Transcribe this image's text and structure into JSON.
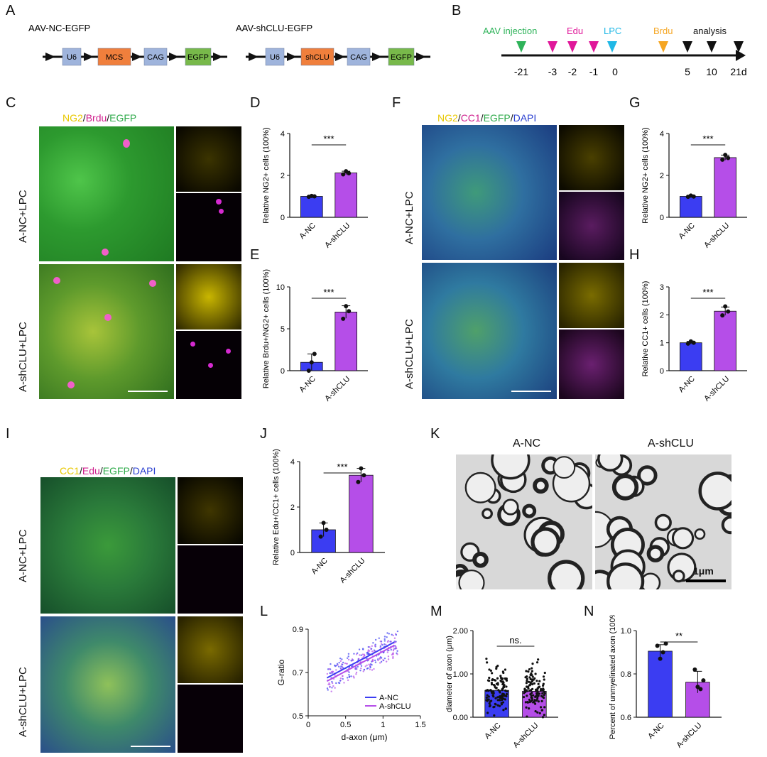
{
  "panels": {
    "A": "A",
    "B": "B",
    "C": "C",
    "D": "D",
    "E": "E",
    "F": "F",
    "G": "G",
    "H": "H",
    "I": "I",
    "J": "J",
    "K": "K",
    "L": "L",
    "M": "M",
    "N": "N"
  },
  "panel_a": {
    "constructs": [
      {
        "title": "AAV-NC-EGFP",
        "boxes": [
          {
            "label": "U6",
            "color": "#9fb4dc"
          },
          {
            "label": "MCS",
            "color": "#f07f3c"
          },
          {
            "label": "CAG",
            "color": "#9fb4dc"
          },
          {
            "label": "EGFP",
            "color": "#78b94a"
          }
        ]
      },
      {
        "title": "AAV-shCLU-EGFP",
        "boxes": [
          {
            "label": "U6",
            "color": "#9fb4dc"
          },
          {
            "label": "shCLU",
            "color": "#f07f3c"
          },
          {
            "label": "CAG",
            "color": "#9fb4dc"
          },
          {
            "label": "EGFP",
            "color": "#78b94a"
          }
        ]
      }
    ]
  },
  "panel_b": {
    "events": [
      {
        "label": "AAV injection",
        "color": "#2fb35a"
      },
      {
        "label": "Edu",
        "color": "#e0189a"
      },
      {
        "label": "LPC",
        "color": "#20b8e6"
      },
      {
        "label": "Brdu",
        "color": "#f5a623"
      },
      {
        "label": "analysis",
        "color": "#111111"
      }
    ],
    "ticks": [
      "-21",
      "-3",
      "-2",
      "-1",
      "0",
      "5",
      "10",
      "21d"
    ]
  },
  "panel_c": {
    "stain": [
      {
        "t": "NG2",
        "c": "#e8c800"
      },
      {
        "t": "/",
        "c": "#111"
      },
      {
        "t": "Brdu",
        "c": "#d0208e"
      },
      {
        "t": "/",
        "c": "#111"
      },
      {
        "t": "EGFP",
        "c": "#2eaa4a"
      }
    ],
    "rows": [
      "A-NC+LPC",
      "A-shCLU+LPC"
    ]
  },
  "panel_f": {
    "stain": [
      {
        "t": "NG2",
        "c": "#e8c800"
      },
      {
        "t": "/",
        "c": "#111"
      },
      {
        "t": "CC1",
        "c": "#d0208e"
      },
      {
        "t": "/",
        "c": "#111"
      },
      {
        "t": "EGFP",
        "c": "#2eaa4a"
      },
      {
        "t": "/",
        "c": "#111"
      },
      {
        "t": "DAPI",
        "c": "#2a3fd0"
      }
    ],
    "rows": [
      "A-NC+LPC",
      "A-shCLU+LPC"
    ]
  },
  "panel_i": {
    "stain": [
      {
        "t": "CC1",
        "c": "#e8c800"
      },
      {
        "t": "/",
        "c": "#111"
      },
      {
        "t": "Edu",
        "c": "#d0208e"
      },
      {
        "t": "/",
        "c": "#111"
      },
      {
        "t": "EGFP",
        "c": "#2eaa4a"
      },
      {
        "t": "/",
        "c": "#111"
      },
      {
        "t": "DAPI",
        "c": "#2a3fd0"
      }
    ],
    "rows": [
      "A-NC+LPC",
      "A-shCLU+LPC"
    ]
  },
  "panel_k": {
    "titles": [
      "A-NC",
      "A-shCLU"
    ],
    "scale": "1μm"
  },
  "colors": {
    "blue": "#3b3df2",
    "purple": "#b54ee8"
  },
  "chart_data": [
    {
      "id": "D",
      "type": "bar",
      "categories": [
        "A-NC",
        "A-shCLU"
      ],
      "values": [
        1.0,
        2.12
      ],
      "points": [
        [
          0.98,
          1.02,
          1.0
        ],
        [
          2.05,
          2.2,
          2.1
        ]
      ],
      "err": [
        0.03,
        0.08
      ],
      "ylabel": "Relative NG2+ cells (100%)",
      "ylim": [
        0,
        4
      ],
      "yticks": [
        0,
        2,
        4
      ],
      "sig": "***"
    },
    {
      "id": "E",
      "type": "bar",
      "categories": [
        "A-NC",
        "A-shCLU"
      ],
      "values": [
        1.0,
        7.0
      ],
      "points": [
        [
          0.0,
          1.0,
          2.0
        ],
        [
          6.2,
          7.7,
          7.1
        ]
      ],
      "err": [
        1.0,
        0.75
      ],
      "ylabel": "Relative Brdu+/NG2+ cells (100%)",
      "ylim": [
        0,
        10
      ],
      "yticks": [
        0,
        5,
        10
      ],
      "sig": "***"
    },
    {
      "id": "G",
      "type": "bar",
      "categories": [
        "A-NC",
        "A-shCLU"
      ],
      "values": [
        1.0,
        2.85
      ],
      "points": [
        [
          0.98,
          1.04,
          0.99
        ],
        [
          2.75,
          2.98,
          2.83
        ]
      ],
      "err": [
        0.05,
        0.12
      ],
      "ylabel": "Relative NG2+ cells (100%)",
      "ylim": [
        0,
        4
      ],
      "yticks": [
        0,
        2,
        4
      ],
      "sig": "***"
    },
    {
      "id": "H",
      "type": "bar",
      "categories": [
        "A-NC",
        "A-shCLU"
      ],
      "values": [
        1.0,
        2.13
      ],
      "points": [
        [
          0.97,
          1.05,
          1.0
        ],
        [
          1.98,
          2.3,
          2.12
        ]
      ],
      "err": [
        0.05,
        0.15
      ],
      "ylabel": "Relative CC1+ cells (100%)",
      "ylim": [
        0,
        3
      ],
      "yticks": [
        0,
        1,
        2,
        3
      ],
      "sig": "***"
    },
    {
      "id": "J",
      "type": "bar",
      "categories": [
        "A-NC",
        "A-shCLU"
      ],
      "values": [
        1.0,
        3.4
      ],
      "points": [
        [
          0.7,
          1.3,
          1.0
        ],
        [
          3.1,
          3.7,
          3.4
        ]
      ],
      "err": [
        0.3,
        0.3
      ],
      "ylabel": "Relative Edu+/CC1+ cells (100%)",
      "ylim": [
        0,
        4
      ],
      "yticks": [
        0,
        2,
        4
      ],
      "sig": "***"
    },
    {
      "id": "L",
      "type": "scatter",
      "xlabel": "d-axon (μm)",
      "ylabel": "G-ratio",
      "xlim": [
        0,
        1.5
      ],
      "ylim": [
        0.5,
        0.9
      ],
      "xticks": [
        0,
        0.5,
        1.0,
        1.5
      ],
      "yticks": [
        0.5,
        0.7,
        0.9
      ],
      "series": [
        {
          "name": "A-NC",
          "fit": [
            [
              0.25,
              0.675
            ],
            [
              1.15,
              0.84
            ]
          ]
        },
        {
          "name": "A-shCLU",
          "fit": [
            [
              0.25,
              0.66
            ],
            [
              1.15,
              0.825
            ]
          ]
        }
      ]
    },
    {
      "id": "M",
      "type": "bar",
      "categories": [
        "A-NC",
        "A-shCLU"
      ],
      "values": [
        0.62,
        0.6
      ],
      "ylabel": "diameter of axon (μm)",
      "ylim": [
        0,
        2
      ],
      "yticks": [
        0.0,
        1.0,
        2.0
      ],
      "sig": "ns."
    },
    {
      "id": "N",
      "type": "bar",
      "categories": [
        "A-NC",
        "A-shCLU"
      ],
      "values": [
        0.905,
        0.762
      ],
      "points": [
        [
          0.93,
          0.87,
          0.9,
          0.94
        ],
        [
          0.82,
          0.74,
          0.73,
          0.77
        ]
      ],
      "err": [
        0.03,
        0.05
      ],
      "ylabel": "Percent of unmyelinated axon (100%)",
      "ylim": [
        0.6,
        1.0
      ],
      "yticks": [
        0.6,
        0.8,
        1.0
      ],
      "sig": "**"
    }
  ]
}
